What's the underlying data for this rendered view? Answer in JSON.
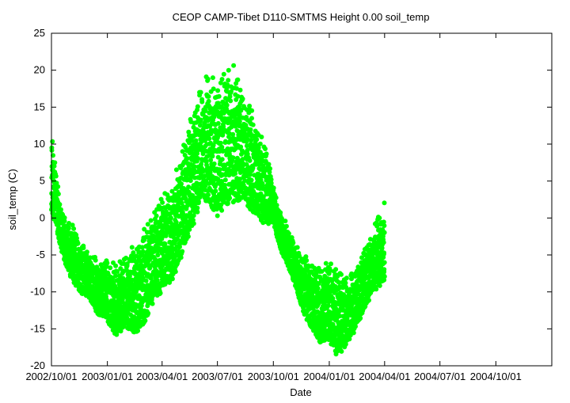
{
  "chart_data": {
    "type": "scatter",
    "title": "CEOP CAMP-Tibet D110-SMTMS Height 0.00 soil_temp",
    "xlabel": "Date",
    "ylabel": "soil_temp (C)",
    "xlim": [
      "2002-10-01",
      "2005-01-01"
    ],
    "ylim": [
      -20,
      25
    ],
    "x_ticks": [
      "2002/10/01",
      "2003/01/01",
      "2003/04/01",
      "2003/07/01",
      "2003/10/01",
      "2004/01/01",
      "2004/04/01",
      "2004/07/01",
      "2004/10/01"
    ],
    "y_ticks": [
      -20,
      -15,
      -10,
      -5,
      0,
      5,
      10,
      15,
      20,
      25
    ],
    "grid": false,
    "marker_color": "#00ff00",
    "series": [
      {
        "x": [
          "2002-10-01",
          "2002-10-08",
          "2002-10-15",
          "2002-10-22",
          "2002-11-01",
          "2002-11-15",
          "2002-12-01",
          "2002-12-15",
          "2003-01-01",
          "2003-01-15",
          "2003-02-01",
          "2003-02-15",
          "2003-03-01",
          "2003-03-15",
          "2003-04-01",
          "2003-04-15",
          "2003-05-01",
          "2003-05-15",
          "2003-06-01",
          "2003-06-15",
          "2003-07-01",
          "2003-07-15",
          "2003-08-01",
          "2003-08-15",
          "2003-09-01",
          "2003-09-15",
          "2003-10-01",
          "2003-10-15",
          "2003-11-01",
          "2003-11-15",
          "2003-12-01",
          "2003-12-15",
          "2004-01-01",
          "2004-01-15",
          "2004-02-01",
          "2004-02-15",
          "2004-03-01",
          "2004-03-15",
          "2004-04-01"
        ],
        "max": [
          12,
          8,
          3,
          1,
          0,
          -2,
          -4,
          -5,
          -5,
          -6,
          -4,
          -3,
          -1,
          1,
          5,
          5,
          9,
          14,
          19,
          21,
          20,
          22,
          21,
          18,
          14,
          12,
          5,
          1,
          -2,
          -4,
          -5,
          -6,
          -5,
          -6,
          -8,
          -6,
          -3,
          0,
          2.5
        ],
        "min": [
          0,
          -1,
          -4,
          -6,
          -8,
          -10,
          -11,
          -13,
          -14,
          -16,
          -15,
          -16,
          -15,
          -12,
          -10,
          -9,
          -6,
          -3,
          1,
          2,
          0,
          1,
          2,
          2,
          0,
          -1,
          -1,
          -5,
          -8,
          -12,
          -15,
          -17,
          -17,
          -19,
          -17,
          -15,
          -12,
          -10,
          -9
        ]
      }
    ]
  }
}
